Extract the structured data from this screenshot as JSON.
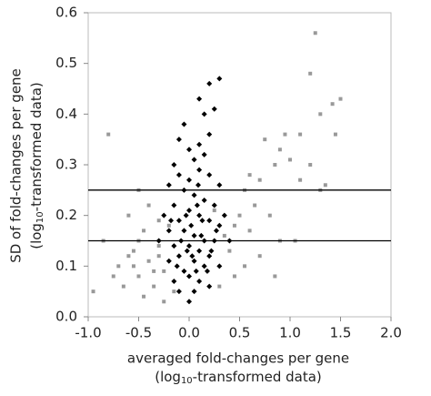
{
  "chart_data": {
    "type": "scatter",
    "x_label": {
      "line1": "averaged fold-changes per gene",
      "line2": [
        "(log",
        "10",
        "-transformed data)"
      ]
    },
    "y_label": {
      "line1": "SD of fold-changes per gene",
      "line2": [
        "(log",
        "10",
        "-transformed data)"
      ]
    },
    "xlim": [
      -1,
      2
    ],
    "ylim": [
      0,
      0.6
    ],
    "xticks": [
      {
        "value": -1,
        "label": "-1.0"
      },
      -0.5,
      {
        "value": 0,
        "label": "0.0"
      },
      0.5,
      {
        "value": 1,
        "label": "1.0"
      },
      1.5,
      {
        "value": 2,
        "label": "2.0"
      }
    ],
    "yticks": [
      {
        "value": 0,
        "label": "0.0"
      },
      0.1,
      0.2,
      0.3,
      0.4,
      0.5,
      0.6
    ],
    "hlines": [
      0.25,
      0.15
    ],
    "series": [
      {
        "color": "#999999",
        "marker": "square",
        "x": [
          1.25,
          1.2,
          1.5,
          1.42,
          1.3,
          1.1,
          1.0,
          0.9,
          0.95,
          0.85,
          1.35,
          1.3,
          1.2,
          1.45,
          0.75,
          0.7,
          0.6,
          0.65,
          0.55,
          0.5,
          0.45,
          0.6,
          0.8,
          0.9,
          1.05,
          0.7,
          0.55,
          0.45,
          0.4,
          0.35,
          0.3,
          0.85,
          -0.8,
          -0.95,
          -0.85,
          -0.7,
          -0.6,
          -0.55,
          -0.5,
          -0.45,
          -0.4,
          -0.35,
          -0.3,
          -0.25,
          -0.2,
          -0.65,
          -0.6,
          -0.5,
          -0.45,
          -0.4,
          -0.35,
          -0.3,
          -0.25,
          -0.55,
          -0.75,
          -0.15,
          -0.5,
          -0.3,
          0.25,
          1.1
        ],
        "y": [
          0.56,
          0.48,
          0.43,
          0.42,
          0.4,
          0.36,
          0.31,
          0.33,
          0.36,
          0.3,
          0.26,
          0.25,
          0.3,
          0.36,
          0.35,
          0.27,
          0.28,
          0.22,
          0.25,
          0.2,
          0.18,
          0.17,
          0.2,
          0.15,
          0.15,
          0.12,
          0.1,
          0.08,
          0.13,
          0.16,
          0.06,
          0.08,
          0.36,
          0.05,
          0.15,
          0.1,
          0.2,
          0.13,
          0.08,
          0.17,
          0.11,
          0.06,
          0.14,
          0.09,
          0.18,
          0.06,
          0.12,
          0.15,
          0.04,
          0.22,
          0.09,
          0.12,
          0.03,
          0.1,
          0.08,
          0.05,
          0.25,
          0.19,
          0.21,
          0.27
        ]
      },
      {
        "color": "#000000",
        "marker": "diamond",
        "x": [
          0.2,
          0.3,
          0.1,
          0.15,
          -0.05,
          0.25,
          -0.1,
          0.0,
          0.1,
          0.2,
          -0.15,
          0.05,
          0.15,
          -0.1,
          0.0,
          0.1,
          0.2,
          0.3,
          -0.2,
          -0.05,
          0.05,
          0.15,
          0.25,
          -0.15,
          -0.25,
          0.0,
          0.1,
          0.2,
          0.3,
          -0.1,
          -0.2,
          -0.05,
          0.05,
          0.15,
          0.25,
          -0.15,
          0.0,
          0.1,
          0.2,
          -0.1,
          -0.2,
          0.05,
          0.15,
          0.3,
          -0.05,
          0.0,
          0.1,
          -0.15,
          0.05,
          0.0,
          0.2,
          -0.1,
          0.35,
          0.4,
          -0.3,
          0.02,
          0.08,
          -0.02,
          0.12,
          -0.08,
          0.18,
          0.22,
          -0.12,
          0.07,
          -0.03,
          0.03,
          0.13,
          0.27,
          -0.18,
          0.09
        ],
        "y": [
          0.46,
          0.47,
          0.43,
          0.4,
          0.38,
          0.41,
          0.35,
          0.33,
          0.34,
          0.36,
          0.3,
          0.31,
          0.32,
          0.28,
          0.27,
          0.29,
          0.28,
          0.26,
          0.26,
          0.25,
          0.24,
          0.23,
          0.22,
          0.22,
          0.2,
          0.21,
          0.2,
          0.19,
          0.18,
          0.19,
          0.17,
          0.17,
          0.16,
          0.15,
          0.15,
          0.14,
          0.14,
          0.13,
          0.12,
          0.12,
          0.11,
          0.11,
          0.1,
          0.1,
          0.09,
          0.08,
          0.07,
          0.07,
          0.05,
          0.03,
          0.06,
          0.05,
          0.2,
          0.15,
          0.15,
          0.18,
          0.22,
          0.13,
          0.16,
          0.15,
          0.09,
          0.13,
          0.1,
          0.09,
          0.2,
          0.12,
          0.19,
          0.17,
          0.19,
          0.26
        ]
      }
    ]
  }
}
